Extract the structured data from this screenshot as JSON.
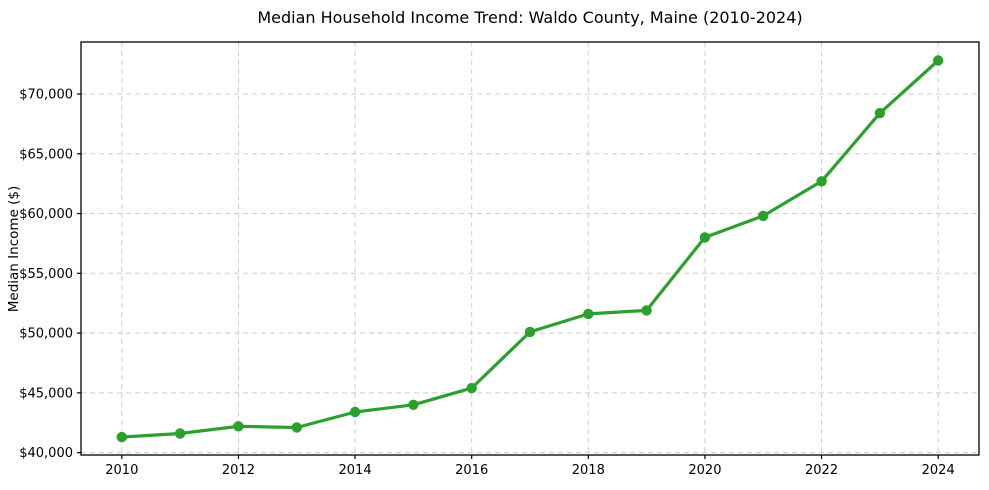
{
  "chart_data": {
    "type": "line",
    "title": "Median Household Income Trend: Waldo County, Maine (2010-2024)",
    "xlabel": "",
    "ylabel": "Median Income ($)",
    "x": [
      2010,
      2011,
      2012,
      2013,
      2014,
      2015,
      2016,
      2017,
      2018,
      2019,
      2020,
      2021,
      2022,
      2023,
      2024
    ],
    "values": [
      41300,
      41600,
      42200,
      42100,
      43400,
      44000,
      45400,
      50100,
      51600,
      51900,
      58000,
      59800,
      62700,
      68400,
      72800
    ],
    "series_name": "Median Household Income",
    "x_tick_values": [
      2010,
      2012,
      2014,
      2016,
      2018,
      2020,
      2022,
      2024
    ],
    "x_tick_labels": [
      "2010",
      "2012",
      "2014",
      "2016",
      "2018",
      "2020",
      "2022",
      "2024"
    ],
    "y_tick_values": [
      40000,
      45000,
      50000,
      55000,
      60000,
      65000,
      70000
    ],
    "y_tick_labels": [
      "$40,000",
      "$45,000",
      "$50,000",
      "$55,000",
      "$60,000",
      "$65,000",
      "$70,000"
    ],
    "xlim": [
      2009.3,
      2024.7
    ],
    "ylim": [
      39800,
      74350
    ],
    "grid": true,
    "grid_style": "dashed",
    "legend": "none",
    "colors": {
      "line": "#2ca02c",
      "marker": "#2ca02c",
      "grid": "#cccccc",
      "spine": "#000000",
      "background": "#ffffff"
    },
    "marker": "circle"
  }
}
